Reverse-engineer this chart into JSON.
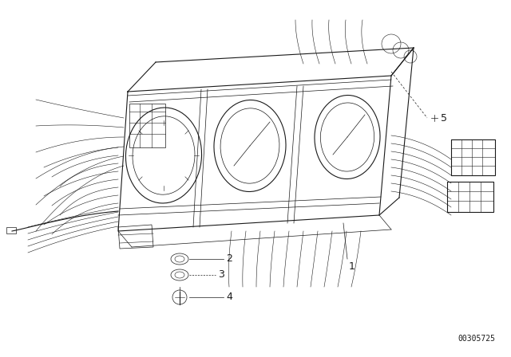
{
  "background_color": "#ffffff",
  "fig_width": 6.4,
  "fig_height": 4.48,
  "dpi": 100,
  "part_number": "00305725",
  "label_fontsize": 9,
  "color": "#1a1a1a"
}
